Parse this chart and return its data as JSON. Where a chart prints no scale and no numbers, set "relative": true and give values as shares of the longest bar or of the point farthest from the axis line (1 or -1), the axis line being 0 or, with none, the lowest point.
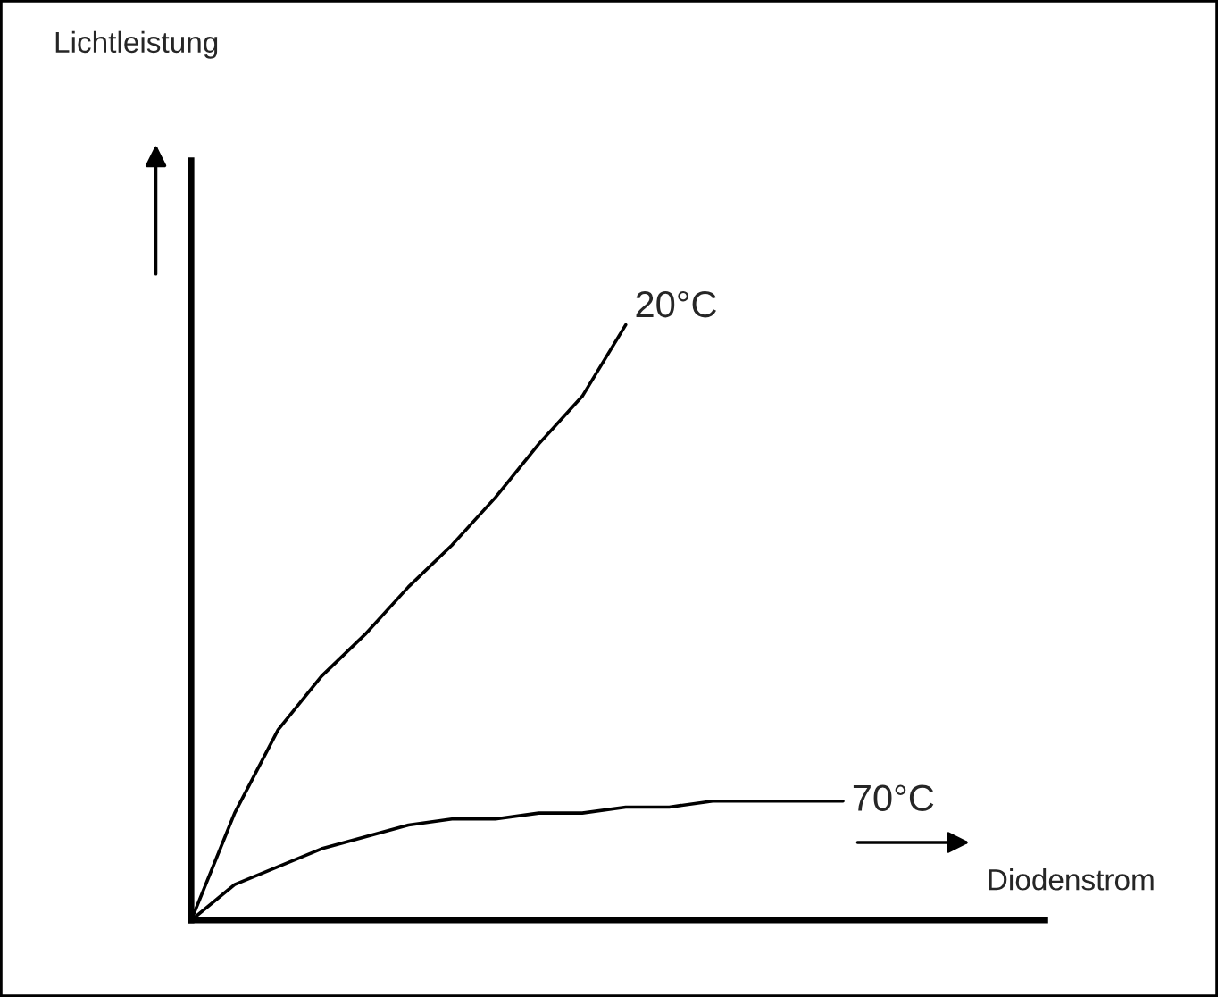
{
  "chart_data": {
    "type": "line",
    "relative": true,
    "xlabel": "Diodenstrom",
    "annotations": [
      "Lichtleistung"
    ],
    "categories": [
      null,
      null,
      null,
      null,
      null,
      null,
      null,
      null,
      null,
      null,
      null,
      null,
      null,
      null,
      null,
      null
    ],
    "series": [
      {
        "name": "20°C",
        "color": "#000000",
        "values": [
          0,
          0.18,
          0.32,
          0.41,
          0.48,
          0.56,
          0.63,
          0.71,
          0.8,
          0.88,
          1.0,
          null,
          null,
          null,
          null,
          null
        ]
      },
      {
        "name": "70°C",
        "color": "#000000",
        "values": [
          0,
          0.06,
          0.09,
          0.12,
          0.14,
          0.16,
          0.17,
          0.17,
          0.18,
          0.18,
          0.19,
          0.19,
          0.2,
          0.2,
          0.2,
          0.2
        ]
      }
    ],
    "grid": false,
    "legend": false,
    "marker": "none",
    "line_style": "solid"
  }
}
